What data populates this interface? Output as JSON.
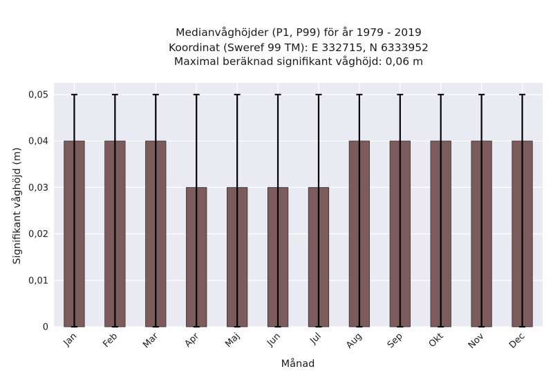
{
  "chart_data": {
    "type": "bar",
    "title_lines": [
      "Medianvåghöjder (P1, P99) för år 1979 - 2019",
      "Koordinat (Sweref 99 TM): E 332715, N 6333952",
      "Maximal beräknad signifikant våghöjd: 0,06 m"
    ],
    "xlabel": "Månad",
    "ylabel": "Signifikant våghöjd (m)",
    "categories": [
      "Jan",
      "Feb",
      "Mar",
      "Apr",
      "Maj",
      "Jun",
      "Jul",
      "Aug",
      "Sep",
      "Okt",
      "Nov",
      "Dec"
    ],
    "values": [
      0.04,
      0.04,
      0.04,
      0.03,
      0.03,
      0.03,
      0.03,
      0.04,
      0.04,
      0.04,
      0.04,
      0.04
    ],
    "error_low": [
      0,
      0,
      0,
      0,
      0,
      0,
      0,
      0,
      0,
      0,
      0,
      0
    ],
    "error_high": [
      0.05,
      0.05,
      0.05,
      0.05,
      0.05,
      0.05,
      0.05,
      0.05,
      0.05,
      0.05,
      0.05,
      0.05
    ],
    "ylim": [
      0,
      0.0525
    ],
    "yticks": [
      0,
      0.01,
      0.02,
      0.03,
      0.04,
      0.05
    ],
    "ytick_labels": [
      "0",
      "0,01",
      "0,02",
      "0,03",
      "0,04",
      "0,05"
    ],
    "grid": true,
    "legend": "none",
    "bar_color": "#7b5b5b",
    "plot_background": "#eaeaf2"
  }
}
